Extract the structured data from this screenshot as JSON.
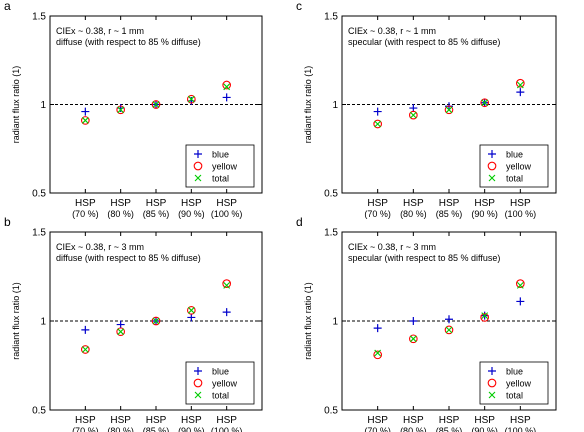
{
  "chart_data": [
    {
      "panel": "a",
      "type": "scatter",
      "annotation": [
        "CIEx ~ 0.38, r ~ 1 mm",
        "diffuse (with respect to 85 % diffuse)"
      ],
      "ylabel": "radiant flux ratio (1)",
      "ylim": [
        0.5,
        1.5
      ],
      "yticks": [
        "0.5",
        "1",
        "1.5"
      ],
      "categories": [
        [
          "HSP",
          "(70 %)"
        ],
        [
          "HSP",
          "(80 %)"
        ],
        [
          "HSP",
          "(85 %)"
        ],
        [
          "HSP",
          "(90 %)"
        ],
        [
          "HSP",
          "(100 %)"
        ]
      ],
      "reference_line": 1,
      "legend": "bottom-right",
      "series": [
        {
          "name": "blue",
          "marker": "plus",
          "color": "#0000cc",
          "values": [
            0.96,
            0.98,
            1.0,
            1.02,
            1.04
          ]
        },
        {
          "name": "yellow",
          "marker": "circle",
          "color": "#ff0000",
          "values": [
            0.91,
            0.97,
            1.0,
            1.03,
            1.11
          ]
        },
        {
          "name": "total",
          "marker": "cross",
          "color": "#00cc00",
          "values": [
            0.91,
            0.97,
            1.0,
            1.03,
            1.1
          ]
        }
      ]
    },
    {
      "panel": "b",
      "type": "scatter",
      "annotation": [
        "CIEx ~ 0.38, r ~ 3 mm",
        "diffuse (with respect to 85 % diffuse)"
      ],
      "ylabel": "radiant flux ratio (1)",
      "ylim": [
        0.5,
        1.5
      ],
      "yticks": [
        "0.5",
        "1",
        "1.5"
      ],
      "categories": [
        [
          "HSP",
          "(70 %)"
        ],
        [
          "HSP",
          "(80 %)"
        ],
        [
          "HSP",
          "(85 %)"
        ],
        [
          "HSP",
          "(90 %)"
        ],
        [
          "HSP",
          "(100 %)"
        ]
      ],
      "reference_line": 1,
      "legend": "bottom-right",
      "series": [
        {
          "name": "blue",
          "marker": "plus",
          "color": "#0000cc",
          "values": [
            0.95,
            0.98,
            1.0,
            1.02,
            1.05
          ]
        },
        {
          "name": "yellow",
          "marker": "circle",
          "color": "#ff0000",
          "values": [
            0.84,
            0.94,
            1.0,
            1.06,
            1.21
          ]
        },
        {
          "name": "total",
          "marker": "cross",
          "color": "#00cc00",
          "values": [
            0.84,
            0.94,
            1.0,
            1.06,
            1.2
          ]
        }
      ]
    },
    {
      "panel": "c",
      "type": "scatter",
      "annotation": [
        "CIEx ~ 0.38, r ~ 1 mm",
        "specular (with respect to 85 % diffuse)"
      ],
      "ylabel": "radiant flux ratio (1)",
      "ylim": [
        0.5,
        1.5
      ],
      "yticks": [
        "0.5",
        "1",
        "1.5"
      ],
      "categories": [
        [
          "HSP",
          "(70 %)"
        ],
        [
          "HSP",
          "(80 %)"
        ],
        [
          "HSP",
          "(85 %)"
        ],
        [
          "HSP",
          "(90 %)"
        ],
        [
          "HSP",
          "(100 %)"
        ]
      ],
      "reference_line": 1,
      "legend": "bottom-right",
      "series": [
        {
          "name": "blue",
          "marker": "plus",
          "color": "#0000cc",
          "values": [
            0.96,
            0.98,
            0.99,
            1.01,
            1.07
          ]
        },
        {
          "name": "yellow",
          "marker": "circle",
          "color": "#ff0000",
          "values": [
            0.89,
            0.94,
            0.97,
            1.01,
            1.12
          ]
        },
        {
          "name": "total",
          "marker": "cross",
          "color": "#00cc00",
          "values": [
            0.89,
            0.94,
            0.97,
            1.01,
            1.11
          ]
        }
      ]
    },
    {
      "panel": "d",
      "type": "scatter",
      "annotation": [
        "CIEx ~ 0.38, r ~ 3 mm",
        "specular (with respect to 85 % diffuse)"
      ],
      "ylabel": "radiant flux ratio (1)",
      "ylim": [
        0.5,
        1.5
      ],
      "yticks": [
        "0.5",
        "1",
        "1.5"
      ],
      "categories": [
        [
          "HSP",
          "(70 %)"
        ],
        [
          "HSP",
          "(80 %)"
        ],
        [
          "HSP",
          "(85 %)"
        ],
        [
          "HSP",
          "(90 %)"
        ],
        [
          "HSP",
          "(100 %)"
        ]
      ],
      "reference_line": 1,
      "legend": "bottom-right",
      "series": [
        {
          "name": "blue",
          "marker": "plus",
          "color": "#0000cc",
          "values": [
            0.96,
            1.0,
            1.01,
            1.03,
            1.11
          ]
        },
        {
          "name": "yellow",
          "marker": "circle",
          "color": "#ff0000",
          "values": [
            0.81,
            0.9,
            0.95,
            1.02,
            1.21
          ]
        },
        {
          "name": "total",
          "marker": "cross",
          "color": "#00cc00",
          "values": [
            0.82,
            0.9,
            0.95,
            1.03,
            1.2
          ]
        }
      ]
    }
  ]
}
